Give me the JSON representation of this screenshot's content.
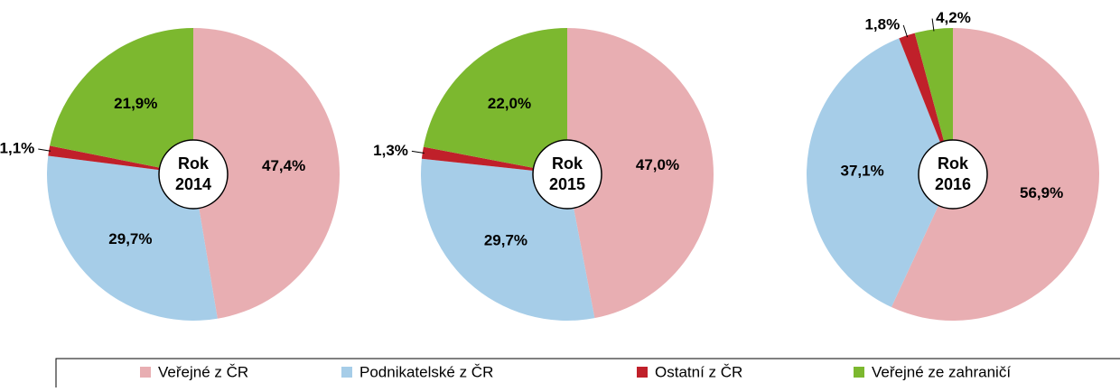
{
  "chart_data": [
    {
      "type": "pie",
      "title": [
        "Rok",
        "2014"
      ],
      "categories": [
        "Veřejné z ČR",
        "Podnikatelské z ČR",
        "Ostatní z ČR",
        "Veřejné ze zahraničí"
      ],
      "values": [
        47.4,
        29.7,
        1.1,
        21.9
      ],
      "value_labels": [
        "47,4%",
        "29,7%",
        "1,1%",
        "21,9%"
      ],
      "colors": [
        "#e8aeb2",
        "#a6cde8",
        "#c0202a",
        "#7cb82f"
      ]
    },
    {
      "type": "pie",
      "title": [
        "Rok",
        "2015"
      ],
      "categories": [
        "Veřejné z ČR",
        "Podnikatelské z ČR",
        "Ostatní z ČR",
        "Veřejné ze zahraničí"
      ],
      "values": [
        47.0,
        29.7,
        1.3,
        22.0
      ],
      "value_labels": [
        "47,0%",
        "29,7%",
        "1,3%",
        "22,0%"
      ],
      "colors": [
        "#e8aeb2",
        "#a6cde8",
        "#c0202a",
        "#7cb82f"
      ]
    },
    {
      "type": "pie",
      "title": [
        "Rok",
        "2016"
      ],
      "categories": [
        "Veřejné z ČR",
        "Podnikatelské z ČR",
        "Ostatní z ČR",
        "Veřejné ze zahraničí"
      ],
      "values": [
        56.9,
        37.1,
        1.8,
        4.2
      ],
      "value_labels": [
        "56,9%",
        "37,1%",
        "1,8%",
        "4,2%"
      ],
      "colors": [
        "#e8aeb2",
        "#a6cde8",
        "#c0202a",
        "#7cb82f"
      ]
    }
  ]
}
